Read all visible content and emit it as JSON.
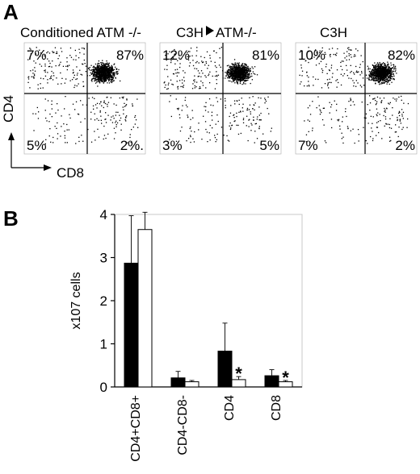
{
  "panel_a": {
    "letter": "A",
    "axis_y_label": "CD4",
    "axis_x_label": "CD8",
    "plots": [
      {
        "title": "Conditioned ATM -/-",
        "q_ul": "7%",
        "q_ur": "87%",
        "q_ll": "5%",
        "q_lr": "2%."
      },
      {
        "title_left": "C3H",
        "title_right": "ATM-/-",
        "q_ul": "12%",
        "q_ur": "81%",
        "q_ll": "3%",
        "q_lr": "5%"
      },
      {
        "title": "C3H",
        "q_ul": "10%",
        "q_ur": "82%",
        "q_ll": "7%",
        "q_lr": "2%"
      }
    ]
  },
  "panel_b": {
    "letter": "B"
  },
  "chart_data": {
    "type": "bar",
    "title": "",
    "xlabel": "",
    "ylabel": "x107 cells",
    "ylim": [
      0,
      4
    ],
    "yticks": [
      "0",
      "1",
      "2",
      "3",
      "4"
    ],
    "grid": false,
    "categories": [
      "CD4+CD8+",
      "CD4-CD8-",
      "CD4",
      "CD8"
    ],
    "series": [
      {
        "color": "#000000",
        "values": [
          2.87,
          0.21,
          0.83,
          0.26
        ],
        "errors": [
          1.1,
          0.15,
          0.65,
          0.14
        ]
      },
      {
        "color": "#ffffff",
        "values": [
          3.65,
          0.12,
          0.17,
          0.12
        ],
        "errors": [
          0.4,
          0.03,
          0.07,
          0.03
        ]
      }
    ],
    "annotations": [
      {
        "category": "CD4",
        "series": 1,
        "text": "*"
      },
      {
        "category": "CD8",
        "series": 1,
        "text": "*"
      }
    ]
  }
}
